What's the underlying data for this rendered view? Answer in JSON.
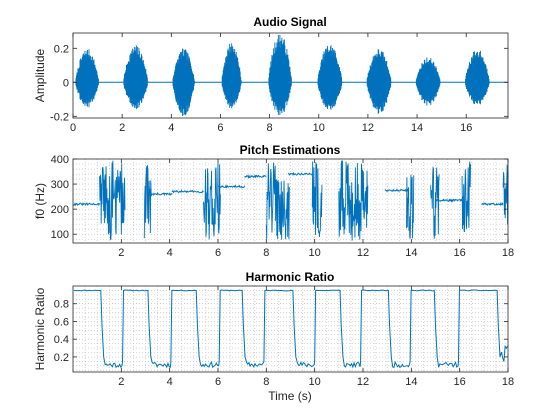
{
  "colors": {
    "series": "#0072BD",
    "axes": "#262626",
    "grid": "#b8b8b8",
    "background": "#ffffff"
  },
  "chart_data": [
    {
      "id": "audio",
      "type": "line",
      "title": "Audio Signal",
      "xlabel": "",
      "ylabel": "Amplitude",
      "xlim": [
        0,
        17.7
      ],
      "ylim": [
        -0.21,
        0.29
      ],
      "xticks": [
        0,
        2,
        4,
        6,
        8,
        10,
        12,
        14,
        16
      ],
      "yticks": [
        -0.2,
        0,
        0.2
      ],
      "xtick_labels": [
        "0",
        "2",
        "4",
        "6",
        "8",
        "10",
        "12",
        "14",
        "16"
      ],
      "ytick_labels": [
        "-0.2",
        "0",
        "0.2"
      ],
      "grid": "off",
      "series": [
        {
          "bursts": [
            {
              "start": 0.1,
              "end": 1.05,
              "pos": 0.2,
              "neg": -0.15
            },
            {
              "start": 2.05,
              "end": 3.05,
              "pos": 0.22,
              "neg": -0.16
            },
            {
              "start": 4.05,
              "end": 4.95,
              "pos": 0.2,
              "neg": -0.2
            },
            {
              "start": 6.05,
              "end": 6.85,
              "pos": 0.24,
              "neg": -0.16
            },
            {
              "start": 7.95,
              "end": 8.9,
              "pos": 0.29,
              "neg": -0.2
            },
            {
              "start": 9.95,
              "end": 10.95,
              "pos": 0.23,
              "neg": -0.17
            },
            {
              "start": 11.95,
              "end": 12.95,
              "pos": 0.2,
              "neg": -0.19
            },
            {
              "start": 13.95,
              "end": 14.95,
              "pos": 0.15,
              "neg": -0.14
            },
            {
              "start": 15.95,
              "end": 16.95,
              "pos": 0.2,
              "neg": -0.14
            }
          ]
        }
      ]
    },
    {
      "id": "pitch",
      "type": "line",
      "title": "Pitch Estimations",
      "xlabel": "",
      "ylabel": "f0 (Hz)",
      "xlim": [
        0,
        18
      ],
      "ylim": [
        65,
        400
      ],
      "xticks": [
        2,
        4,
        6,
        8,
        10,
        12,
        14,
        16,
        18
      ],
      "yticks": [
        100,
        200,
        300,
        400
      ],
      "xtick_labels": [
        "2",
        "4",
        "6",
        "8",
        "10",
        "12",
        "14",
        "16",
        "18"
      ],
      "ytick_labels": [
        "100",
        "200",
        "300",
        "400"
      ],
      "grid": "on",
      "series": [
        {
          "steady": [
            {
              "start": 0.0,
              "end": 1.1,
              "value": 220
            },
            {
              "start": 3.1,
              "end": 4.1,
              "value": 260
            },
            {
              "start": 4.1,
              "end": 5.4,
              "value": 270
            },
            {
              "start": 6.0,
              "end": 7.1,
              "value": 290
            },
            {
              "start": 7.1,
              "end": 8.0,
              "value": 330
            },
            {
              "start": 8.9,
              "end": 9.9,
              "value": 340
            },
            {
              "start": 12.9,
              "end": 13.9,
              "value": 275
            },
            {
              "start": 15.0,
              "end": 16.1,
              "value": 235
            },
            {
              "start": 16.9,
              "end": 17.8,
              "value": 220
            }
          ],
          "noisy": [
            {
              "start": 1.1,
              "end": 2.15
            },
            {
              "start": 2.95,
              "end": 3.25
            },
            {
              "start": 5.4,
              "end": 6.1
            },
            {
              "start": 8.0,
              "end": 8.95
            },
            {
              "start": 9.9,
              "end": 10.3
            },
            {
              "start": 11.0,
              "end": 12.2
            },
            {
              "start": 13.8,
              "end": 14.1
            },
            {
              "start": 14.8,
              "end": 15.15
            },
            {
              "start": 16.1,
              "end": 16.45
            },
            {
              "start": 17.8,
              "end": 18.0
            }
          ]
        }
      ]
    },
    {
      "id": "harmonic",
      "type": "line",
      "title": "Harmonic Ratio",
      "xlabel": "Time (s)",
      "ylabel": "Harmonic Ratio",
      "xlim": [
        0,
        18
      ],
      "ylim": [
        0.03,
        1.0
      ],
      "xticks": [
        2,
        4,
        6,
        8,
        10,
        12,
        14,
        16,
        18
      ],
      "yticks": [
        0.2,
        0.4,
        0.6,
        0.8
      ],
      "xtick_labels": [
        "2",
        "4",
        "6",
        "8",
        "10",
        "12",
        "14",
        "16",
        "18"
      ],
      "ytick_labels": [
        "0.2",
        "0.4",
        "0.6",
        "0.8"
      ],
      "grid": "on",
      "series": [
        {
          "high_value": 0.95,
          "low_value": 0.1,
          "high_segments": [
            {
              "start": 0.0,
              "end": 1.15
            },
            {
              "start": 2.05,
              "end": 3.1
            },
            {
              "start": 4.05,
              "end": 5.1
            },
            {
              "start": 6.05,
              "end": 7.0
            },
            {
              "start": 7.9,
              "end": 9.1
            },
            {
              "start": 10.0,
              "end": 11.05
            },
            {
              "start": 11.9,
              "end": 13.05
            },
            {
              "start": 13.95,
              "end": 14.95
            },
            {
              "start": 15.95,
              "end": 17.55
            }
          ]
        }
      ]
    }
  ]
}
